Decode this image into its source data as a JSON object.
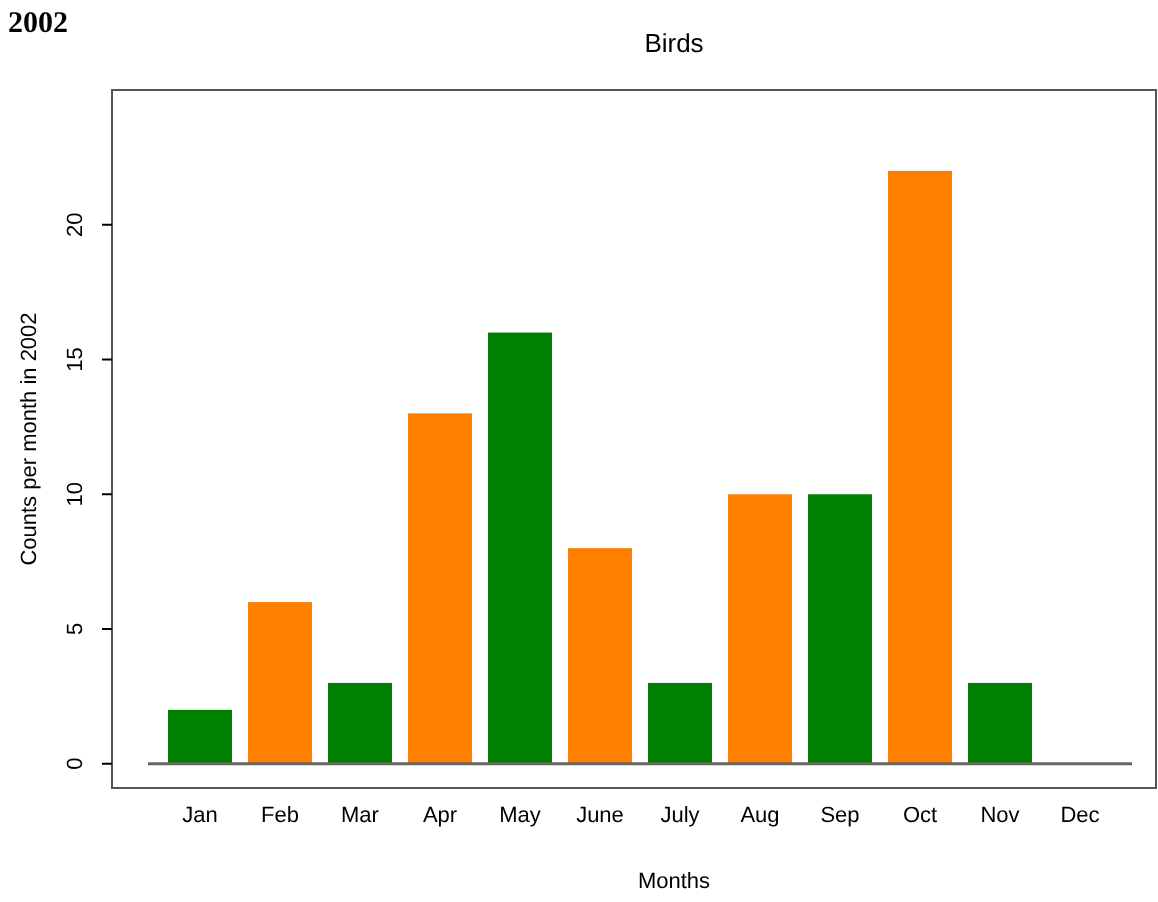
{
  "chart_data": {
    "type": "bar",
    "title": "Birds",
    "xlabel": "Months",
    "ylabel": "Counts per month in 2002",
    "annotations": [
      "2002"
    ],
    "categories": [
      "Jan",
      "Feb",
      "Mar",
      "Apr",
      "May",
      "June",
      "July",
      "Aug",
      "Sep",
      "Oct",
      "Nov",
      "Dec"
    ],
    "values": [
      2,
      6,
      3,
      13,
      16,
      8,
      3,
      10,
      10,
      22,
      3,
      0
    ],
    "colors": [
      "#008000",
      "#ff8000",
      "#008000",
      "#ff8000",
      "#008000",
      "#ff8000",
      "#008000",
      "#ff8000",
      "#008000",
      "#ff8000",
      "#008000",
      "#ff8000"
    ],
    "ylim": [
      -0.9,
      25
    ],
    "yticks": [
      0,
      5,
      10,
      15,
      20
    ]
  }
}
